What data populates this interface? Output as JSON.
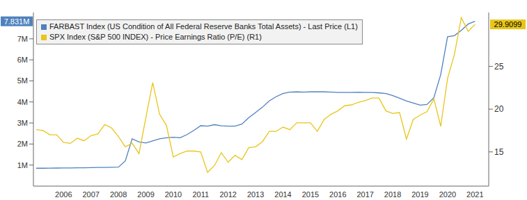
{
  "chart_data": {
    "type": "line",
    "x": [
      2005.5,
      2005.75,
      2006,
      2006.25,
      2006.5,
      2006.75,
      2007,
      2007.25,
      2007.5,
      2007.75,
      2008,
      2008.25,
      2008.5,
      2008.75,
      2009,
      2009.25,
      2009.5,
      2009.75,
      2010,
      2010.25,
      2010.5,
      2010.75,
      2011,
      2011.25,
      2011.5,
      2011.75,
      2012,
      2012.25,
      2012.5,
      2012.75,
      2013,
      2013.25,
      2013.5,
      2013.75,
      2014,
      2014.25,
      2014.5,
      2014.75,
      2015,
      2015.25,
      2015.5,
      2015.75,
      2016,
      2016.25,
      2016.5,
      2016.75,
      2017,
      2017.25,
      2017.5,
      2017.75,
      2018,
      2018.25,
      2018.5,
      2018.75,
      2019,
      2019.25,
      2019.5,
      2019.75,
      2020,
      2020.25,
      2020.5,
      2020.75,
      2021,
      2021.25,
      2021.5
    ],
    "series": [
      {
        "name": "FARBAST Index (US Condition of All Federal Reserve Banks Total Assets) - Last Price (L1)",
        "color": "#4f81bd",
        "axis": "y",
        "values": [
          850000,
          850000,
          855000,
          858000,
          860000,
          862000,
          868000,
          872000,
          878000,
          885000,
          890000,
          892000,
          900000,
          1200000,
          2250000,
          2100000,
          2050000,
          2150000,
          2250000,
          2300000,
          2320000,
          2300000,
          2450000,
          2650000,
          2870000,
          2850000,
          2920000,
          2870000,
          2850000,
          2850000,
          2950000,
          3250000,
          3500000,
          3750000,
          4050000,
          4250000,
          4400000,
          4470000,
          4480000,
          4470000,
          4480000,
          4480000,
          4480000,
          4470000,
          4450000,
          4450000,
          4450000,
          4460000,
          4450000,
          4450000,
          4430000,
          4400000,
          4300000,
          4180000,
          4050000,
          3950000,
          3850000,
          3880000,
          4200000,
          5300000,
          7100000,
          7150000,
          7400000,
          7700000,
          7831000
        ],
        "value_labels": [
          null,
          null,
          null,
          null,
          null,
          null,
          null,
          null,
          null,
          null,
          null,
          null,
          null,
          null,
          null,
          null,
          null,
          null,
          null,
          null,
          null,
          null,
          null,
          null,
          null,
          null,
          null,
          null,
          null,
          null,
          null,
          null,
          null,
          null,
          null,
          null,
          null,
          null,
          null,
          null,
          null,
          null,
          null,
          null,
          null,
          null,
          null,
          null,
          null,
          null,
          null,
          null,
          null,
          null,
          null,
          null,
          null,
          null,
          null,
          null,
          null,
          null,
          null,
          null,
          "7.831M"
        ]
      },
      {
        "name": "SPX Index (S&P 500 INDEX) - Price Earnings Ratio (P/E) (R1)",
        "color": "#e8c51a",
        "axis": "y2",
        "values": [
          17.6,
          17.5,
          17.0,
          17.0,
          16.1,
          16.0,
          16.6,
          16.3,
          16.9,
          17.1,
          18.2,
          17.8,
          16.8,
          15.6,
          16.0,
          14.8,
          19.0,
          23.1,
          19.4,
          18.1,
          14.4,
          14.8,
          15.1,
          15.1,
          15.0,
          12.6,
          13.4,
          14.9,
          13.8,
          14.6,
          14.1,
          15.5,
          15.6,
          16.2,
          17.4,
          17.4,
          17.9,
          17.6,
          18.4,
          18.4,
          18.4,
          17.4,
          18.8,
          19.4,
          19.8,
          20.4,
          20.5,
          20.8,
          21.0,
          21.3,
          21.3,
          19.8,
          19.5,
          19.6,
          16.5,
          18.8,
          19.3,
          19.7,
          21.2,
          18.0,
          23.6,
          26.4,
          30.7,
          29.1,
          29.9099
        ],
        "value_labels": [
          null,
          null,
          null,
          null,
          null,
          null,
          null,
          null,
          null,
          null,
          null,
          null,
          null,
          null,
          null,
          null,
          null,
          null,
          null,
          null,
          null,
          null,
          null,
          null,
          null,
          null,
          null,
          null,
          null,
          null,
          null,
          null,
          null,
          null,
          null,
          null,
          null,
          null,
          null,
          null,
          null,
          null,
          null,
          null,
          null,
          null,
          null,
          null,
          null,
          null,
          null,
          null,
          null,
          null,
          null,
          null,
          null,
          null,
          null,
          null,
          null,
          null,
          null,
          null,
          "29.9099"
        ]
      }
    ],
    "xlim": [
      2005.4,
      2022
    ],
    "xticks": [
      {
        "value": 2006.5,
        "label": "2006"
      },
      {
        "value": 2007.5,
        "label": "2007"
      },
      {
        "value": 2008.5,
        "label": "2008"
      },
      {
        "value": 2009.5,
        "label": "2009"
      },
      {
        "value": 2010.5,
        "label": "2010"
      },
      {
        "value": 2011.5,
        "label": "2011"
      },
      {
        "value": 2012.5,
        "label": "2012"
      },
      {
        "value": 2013.5,
        "label": "2013"
      },
      {
        "value": 2014.5,
        "label": "2014"
      },
      {
        "value": 2015.5,
        "label": "2015"
      },
      {
        "value": 2016.5,
        "label": "2016"
      },
      {
        "value": 2017.5,
        "label": "2017"
      },
      {
        "value": 2018.5,
        "label": "2018"
      },
      {
        "value": 2019.5,
        "label": "2019"
      },
      {
        "value": 2020.5,
        "label": "2020"
      },
      {
        "value": 2021.5,
        "label": "2021"
      }
    ],
    "ylim": [
      0,
      8250000
    ],
    "yticks": [
      {
        "value": 1000000,
        "label": "1M"
      },
      {
        "value": 2000000,
        "label": "2M"
      },
      {
        "value": 3000000,
        "label": "3M"
      },
      {
        "value": 4000000,
        "label": "4M"
      },
      {
        "value": 5000000,
        "label": "5M"
      },
      {
        "value": 6000000,
        "label": "6M"
      },
      {
        "value": 7000000,
        "label": "7M"
      }
    ],
    "y2lim": [
      11,
      31.3
    ],
    "y2ticks": [
      15,
      20,
      25
    ],
    "grid": false,
    "legend": "top-left"
  }
}
